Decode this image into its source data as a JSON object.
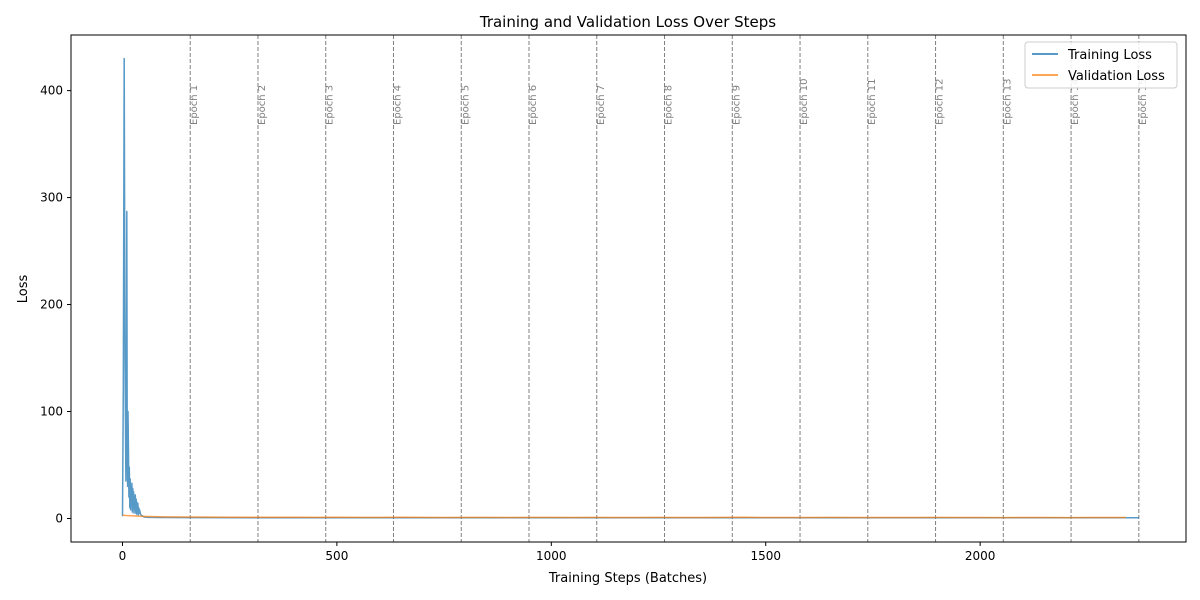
{
  "chart_data": {
    "type": "line",
    "title": "Training and Validation Loss Over Steps",
    "xlabel": "Training Steps (Batches)",
    "ylabel": "Loss",
    "xlim": [
      -120,
      2480
    ],
    "ylim": [
      -22,
      452
    ],
    "xticks": [
      0,
      500,
      1000,
      1500,
      2000
    ],
    "yticks": [
      0,
      100,
      200,
      300,
      400
    ],
    "grid": false,
    "legend_position": "top-right",
    "series": [
      {
        "name": "Training Loss",
        "color": "#1f77b4",
        "x": [
          0,
          2,
          4,
          6,
          8,
          9,
          10,
          11,
          12,
          13,
          14,
          15,
          16,
          17,
          18,
          19,
          20,
          21,
          22,
          23,
          24,
          25,
          26,
          27,
          28,
          29,
          30,
          31,
          32,
          33,
          34,
          35,
          36,
          37,
          38,
          39,
          40,
          42,
          44,
          46,
          48,
          50,
          55,
          60,
          70,
          80,
          100,
          150,
          200,
          300,
          400,
          500,
          600,
          700,
          800,
          900,
          1000,
          1100,
          1200,
          1300,
          1400,
          1500,
          1600,
          1700,
          1800,
          1900,
          2000,
          2100,
          2200,
          2300,
          2370
        ],
        "y": [
          2,
          120,
          430,
          150,
          35,
          90,
          287,
          75,
          30,
          100,
          60,
          20,
          48,
          10,
          37,
          8,
          30,
          15,
          33,
          6,
          28,
          12,
          25,
          5,
          20,
          8,
          22,
          5,
          18,
          4,
          15,
          6,
          14,
          3,
          10,
          5,
          8,
          4,
          3,
          2.5,
          2,
          1.5,
          1.2,
          1,
          1,
          0.9,
          0.9,
          0.8,
          0.8,
          0.7,
          0.7,
          0.7,
          0.7,
          0.6,
          0.6,
          0.6,
          0.6,
          0.6,
          0.6,
          0.6,
          0.6,
          0.6,
          0.6,
          0.6,
          0.6,
          0.6,
          0.6,
          0.6,
          0.6,
          0.6,
          0.6
        ]
      },
      {
        "name": "Validation Loss",
        "color": "#ff7f0e",
        "x": [
          0,
          20,
          40,
          60,
          100,
          150,
          200,
          250,
          300,
          350,
          400,
          450,
          500,
          550,
          600,
          650,
          700,
          750,
          800,
          850,
          900,
          950,
          1000,
          1050,
          1100,
          1150,
          1200,
          1250,
          1300,
          1350,
          1400,
          1450,
          1500,
          1550,
          1600,
          1650,
          1700,
          1750,
          1800,
          1850,
          1900,
          1950,
          2000,
          2050,
          2100,
          2150,
          2200,
          2250,
          2300,
          2340
        ],
        "y": [
          3,
          2.5,
          2,
          1.8,
          1.5,
          1.4,
          1.3,
          1.2,
          1.1,
          1.2,
          1.1,
          1.0,
          1.1,
          1.0,
          1.0,
          1.1,
          1.0,
          0.9,
          1.0,
          1.0,
          0.9,
          1.0,
          1.0,
          0.9,
          1.0,
          0.9,
          0.9,
          1.0,
          0.9,
          0.9,
          1.0,
          1.2,
          0.9,
          0.9,
          0.9,
          1.0,
          0.9,
          0.9,
          0.9,
          0.9,
          1.0,
          0.9,
          0.9,
          0.8,
          0.9,
          0.9,
          0.8,
          0.9,
          0.9,
          0.9
        ]
      }
    ],
    "epoch_markers": [
      {
        "x": 158,
        "label": "Epoch 1"
      },
      {
        "x": 316,
        "label": "Epoch 2"
      },
      {
        "x": 474,
        "label": "Epoch 3"
      },
      {
        "x": 632,
        "label": "Epoch 4"
      },
      {
        "x": 790,
        "label": "Epoch 5"
      },
      {
        "x": 948,
        "label": "Epoch 6"
      },
      {
        "x": 1106,
        "label": "Epoch 7"
      },
      {
        "x": 1264,
        "label": "Epoch 8"
      },
      {
        "x": 1422,
        "label": "Epoch 9"
      },
      {
        "x": 1580,
        "label": "Epoch 10"
      },
      {
        "x": 1738,
        "label": "Epoch 11"
      },
      {
        "x": 1896,
        "label": "Epoch 12"
      },
      {
        "x": 2054,
        "label": "Epoch 13"
      },
      {
        "x": 2212,
        "label": "Epoch 14"
      },
      {
        "x": 2370,
        "label": "Epoch 15"
      }
    ]
  }
}
